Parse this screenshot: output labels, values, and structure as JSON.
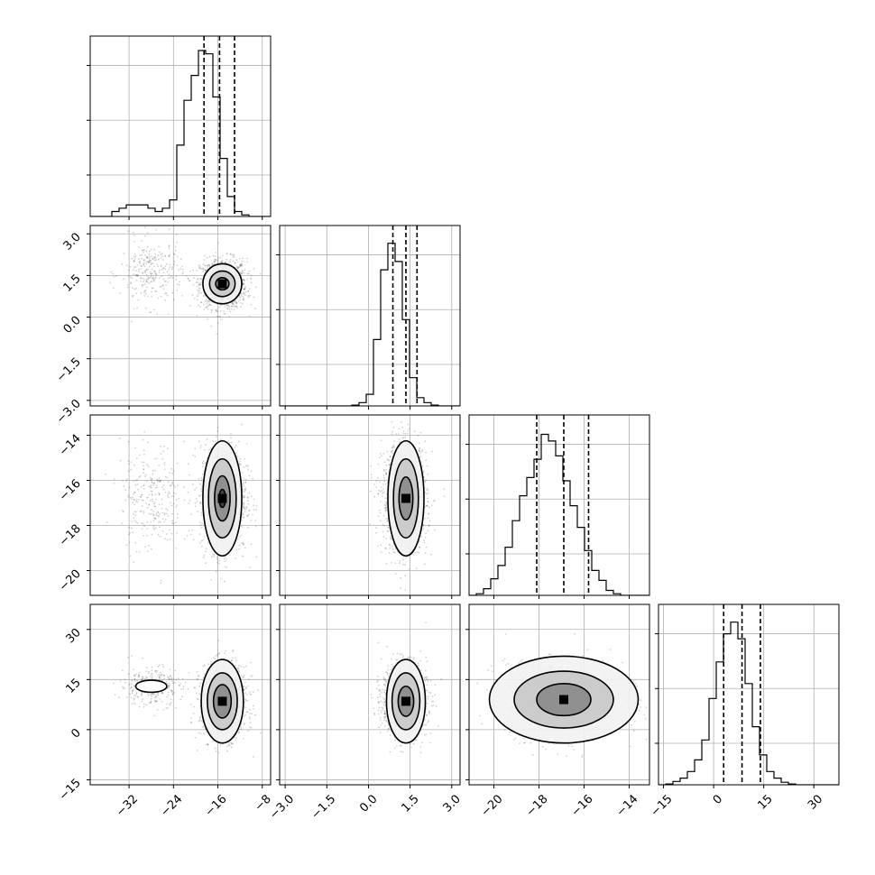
{
  "chart_data": {
    "type": "corner",
    "parameters": 4,
    "axes": [
      {
        "range": [
          -39,
          -6.5
        ],
        "ticks": [
          -32,
          -24,
          -16,
          -8
        ],
        "tick_labels": [
          "−32",
          "−24",
          "−16",
          "−8"
        ]
      },
      {
        "range": [
          -3.2,
          3.3
        ],
        "ticks": [
          -3.0,
          -1.5,
          0.0,
          1.5,
          3.0
        ],
        "tick_labels": [
          "−3.0",
          "−1.5",
          "0.0",
          "1.5",
          "3.0"
        ]
      },
      {
        "range": [
          -21.1,
          -13.1
        ],
        "ticks": [
          -20,
          -18,
          -16,
          -14
        ],
        "tick_labels": [
          "−20",
          "−18",
          "−16",
          "−14"
        ]
      },
      {
        "range": [
          -16.5,
          37.5
        ],
        "ticks": [
          -15,
          0,
          15,
          30
        ],
        "tick_labels": [
          "−15",
          "0",
          "15",
          "30"
        ]
      }
    ],
    "histograms": [
      {
        "bin_start": -39,
        "bin_width": 1.3,
        "counts": [
          0,
          0,
          0,
          0.03,
          0.05,
          0.07,
          0.07,
          0.07,
          0.05,
          0.03,
          0.05,
          0.1,
          0.43,
          0.7,
          0.85,
          1.0,
          0.98,
          0.72,
          0.35,
          0.12,
          0.03,
          0.01,
          0,
          0,
          0
        ],
        "quantiles": [
          -18.5,
          -15.7,
          -13.0
        ]
      },
      {
        "bin_start": -3.2,
        "bin_width": 0.26,
        "counts": [
          0,
          0,
          0,
          0,
          0,
          0,
          0,
          0,
          0,
          0,
          0.005,
          0.02,
          0.07,
          0.4,
          0.82,
          0.98,
          0.87,
          0.52,
          0.17,
          0.05,
          0.02,
          0.005,
          0,
          0,
          0
        ],
        "quantiles": [
          0.88,
          1.35,
          1.75
        ]
      },
      {
        "bin_start": -21.1,
        "bin_width": 0.32,
        "counts": [
          0,
          0.01,
          0.04,
          0.1,
          0.18,
          0.29,
          0.45,
          0.6,
          0.71,
          0.82,
          0.97,
          0.93,
          0.84,
          0.69,
          0.54,
          0.41,
          0.27,
          0.15,
          0.09,
          0.03,
          0.01,
          0,
          0,
          0,
          0
        ],
        "quantiles": [
          -18.1,
          -16.9,
          -15.8
        ]
      },
      {
        "bin_start": -16.5,
        "bin_width": 2.16,
        "counts": [
          0,
          0.005,
          0.02,
          0.04,
          0.08,
          0.15,
          0.27,
          0.52,
          0.74,
          0.91,
          0.98,
          0.88,
          0.61,
          0.35,
          0.18,
          0.08,
          0.04,
          0.015,
          0.005,
          0,
          0,
          0,
          0,
          0,
          0
        ],
        "quantiles": [
          3,
          8.5,
          14
        ]
      }
    ],
    "scatter_clusters": [
      {
        "params": [
          0,
          1
        ],
        "center": [
          -15,
          1.2
        ],
        "sd": [
          2.1,
          0.45
        ],
        "n": 1100
      },
      {
        "params": [
          0,
          1
        ],
        "center": [
          -28,
          1.6
        ],
        "sd": [
          2.8,
          0.6
        ],
        "n": 280
      },
      {
        "params": [
          0,
          2
        ],
        "center": [
          -15,
          -16.8
        ],
        "sd": [
          2.1,
          1.2
        ],
        "n": 1100
      },
      {
        "params": [
          0,
          2
        ],
        "center": [
          -28,
          -16.8
        ],
        "sd": [
          2.8,
          1.2
        ],
        "n": 280
      },
      {
        "params": [
          0,
          3
        ],
        "center": [
          -15,
          8.5
        ],
        "sd": [
          2.1,
          5.5
        ],
        "n": 1100
      },
      {
        "params": [
          0,
          3
        ],
        "center": [
          -28,
          13
        ],
        "sd": [
          2.8,
          3
        ],
        "n": 280
      },
      {
        "params": [
          1,
          2
        ],
        "center": [
          1.3,
          -16.8
        ],
        "sd": [
          0.4,
          1.2
        ],
        "n": 1300
      },
      {
        "params": [
          1,
          3
        ],
        "center": [
          1.3,
          8.5
        ],
        "sd": [
          0.4,
          5.5
        ],
        "n": 1300
      },
      {
        "params": [
          2,
          3
        ],
        "center": [
          -16.9,
          9
        ],
        "sd": [
          1.3,
          5.5
        ],
        "n": 1300
      }
    ],
    "contours": [
      {
        "params": [
          0,
          1
        ],
        "center": [
          -15.2,
          1.2
        ],
        "radii": [
          [
            3.5,
            0.72
          ],
          [
            2.3,
            0.46
          ],
          [
            1.2,
            0.22
          ]
        ]
      },
      {
        "params": [
          0,
          2
        ],
        "center": [
          -15.2,
          -16.8
        ],
        "radii": [
          [
            3.5,
            2.55
          ],
          [
            2.5,
            1.75
          ],
          [
            1.4,
            1.0
          ],
          [
            0.6,
            0.4
          ]
        ]
      },
      {
        "params": [
          0,
          3
        ],
        "center": [
          -15.2,
          8.5
        ],
        "radii": [
          [
            3.8,
            12.5
          ],
          [
            2.7,
            8.5
          ],
          [
            1.6,
            5.0
          ]
        ]
      },
      {
        "params": [
          0,
          3
        ],
        "center": [
          -28,
          13
        ],
        "radii": [
          [
            2.8,
            1.8
          ]
        ]
      },
      {
        "params": [
          1,
          2
        ],
        "center": [
          1.35,
          -16.8
        ],
        "radii": [
          [
            0.65,
            2.55
          ],
          [
            0.45,
            1.75
          ],
          [
            0.25,
            0.95
          ]
        ]
      },
      {
        "params": [
          1,
          3
        ],
        "center": [
          1.35,
          8.5
        ],
        "radii": [
          [
            0.7,
            12.5
          ],
          [
            0.5,
            8.5
          ],
          [
            0.28,
            4.5
          ]
        ]
      },
      {
        "params": [
          2,
          3
        ],
        "center": [
          -16.9,
          9
        ],
        "radii": [
          [
            3.3,
            13.0
          ],
          [
            2.2,
            8.5
          ],
          [
            1.2,
            4.8
          ]
        ]
      }
    ],
    "grid": true
  }
}
